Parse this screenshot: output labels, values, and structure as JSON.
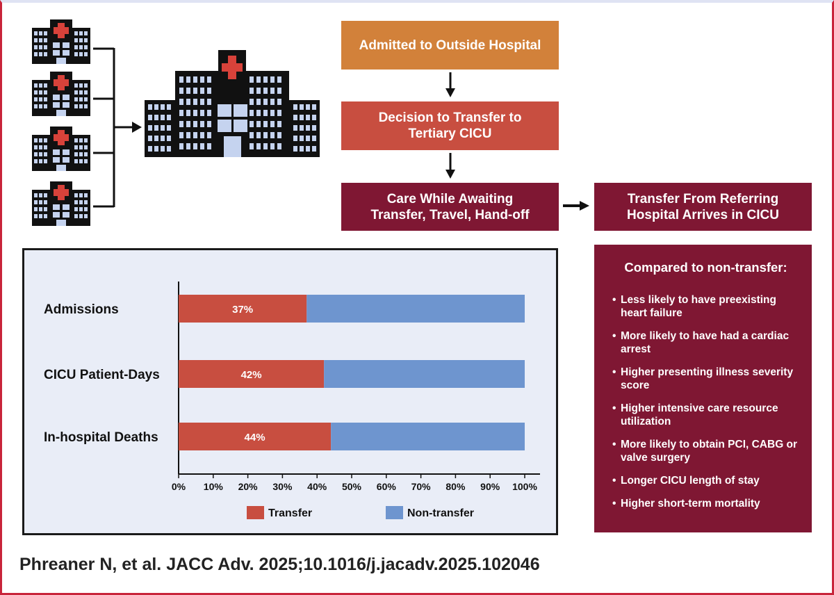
{
  "flow": {
    "step1": "Admitted to Outside Hospital",
    "step2_line1": "Decision to Transfer to",
    "step2_line2": "Tertiary CICU",
    "step3_line1": "Care While Awaiting",
    "step3_line2": "Transfer, Travel, Hand-off",
    "step4_line1": "Transfer From Referring",
    "step4_line2": "Hospital Arrives in CICU"
  },
  "info": {
    "title": "Compared to non-transfer:",
    "items": [
      "Less likely to have preexisting heart failure",
      "More likely to have had a cardiac arrest",
      "Higher presenting illness severity score",
      "Higher intensive care resource utilization",
      "More likely to obtain PCI, CABG or valve surgery",
      "Longer CICU length of stay",
      "Higher short-term mortality"
    ]
  },
  "chart_data": {
    "type": "bar",
    "orientation": "horizontal",
    "stacked": true,
    "categories": [
      "Admissions",
      "CICU Patient-Days",
      "In-hospital Deaths"
    ],
    "series": [
      {
        "name": "Transfer",
        "values": [
          37,
          42,
          44
        ],
        "color": "#c84e40"
      },
      {
        "name": "Non-transfer",
        "values": [
          63,
          58,
          56
        ],
        "color": "#6e95cf"
      }
    ],
    "data_labels": [
      "37%",
      "42%",
      "44%"
    ],
    "xlim": [
      0,
      100
    ],
    "xticks": [
      "0%",
      "10%",
      "20%",
      "30%",
      "40%",
      "50%",
      "60%",
      "70%",
      "80%",
      "90%",
      "100%"
    ],
    "legend_position": "bottom",
    "grid": false
  },
  "citation": "Phreaner N, et al. JACC Adv. 2025;10.1016/j.jacadv.2025.102046",
  "icons": {
    "small_hospital": "hospital-icon",
    "large_hospital": "tertiary-hospital-icon"
  },
  "colors": {
    "orange": "#d2813a",
    "red": "#c84e40",
    "maroon": "#7f1733",
    "blue": "#6e95cf",
    "chart_bg": "#e9edf7"
  }
}
